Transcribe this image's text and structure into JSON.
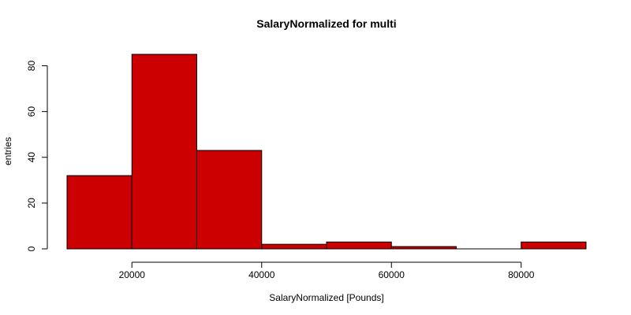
{
  "chart_data": {
    "type": "bar",
    "title": "SalaryNormalized for multi",
    "xlabel": "SalaryNormalized [Pounds]",
    "ylabel": "entries",
    "bins": [
      {
        "from": 10000,
        "to": 20000,
        "count": 32
      },
      {
        "from": 20000,
        "to": 30000,
        "count": 85
      },
      {
        "from": 30000,
        "to": 40000,
        "count": 43
      },
      {
        "from": 40000,
        "to": 50000,
        "count": 2
      },
      {
        "from": 50000,
        "to": 60000,
        "count": 3
      },
      {
        "from": 60000,
        "to": 70000,
        "count": 1
      },
      {
        "from": 70000,
        "to": 80000,
        "count": 0
      },
      {
        "from": 80000,
        "to": 90000,
        "count": 3
      }
    ],
    "xlim": [
      10000,
      90000
    ],
    "ylim": [
      0,
      85
    ],
    "x_ticks": [
      20000,
      40000,
      60000,
      80000
    ],
    "x_tick_labels": [
      "20000",
      "40000",
      "60000",
      "80000"
    ],
    "y_ticks": [
      0,
      20,
      40,
      60,
      80
    ],
    "y_tick_labels": [
      "0",
      "20",
      "40",
      "60",
      "80"
    ],
    "bar_color": "#cc0000",
    "grid": false,
    "legend": "none"
  }
}
